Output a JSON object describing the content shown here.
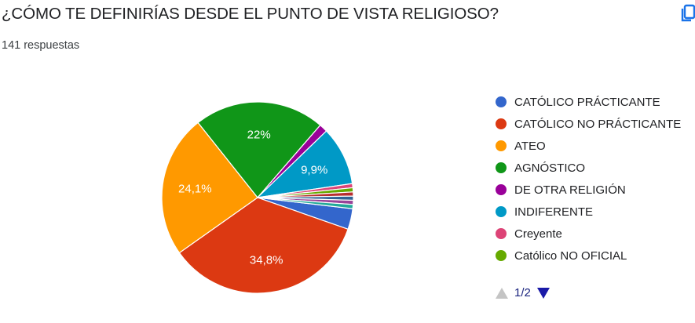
{
  "header": {
    "title": "¿CÓMO TE DEFINIRÍAS DESDE EL PUNTO DE VISTA RELIGIOSO?",
    "responses": "141 respuestas",
    "copy_icon": "copy-icon"
  },
  "chart_data": {
    "type": "pie",
    "title": "¿CÓMO TE DEFINIRÍAS DESDE EL PUNTO DE VISTA RELIGIOSO?",
    "total_responses": 141,
    "legend_position": "right",
    "slices": [
      {
        "label": "CATÓLICO PRÁCTICANTE",
        "value": 3.5,
        "display": "",
        "color": "#3366cc"
      },
      {
        "label": "CATÓLICO NO PRÁCTICANTE",
        "value": 34.8,
        "display": "34,8%",
        "color": "#dc3912"
      },
      {
        "label": "ATEO",
        "value": 24.1,
        "display": "24,1%",
        "color": "#ff9900"
      },
      {
        "label": "AGNÓSTICO",
        "value": 22,
        "display": "22%",
        "color": "#109618"
      },
      {
        "label": "DE OTRA RELIGIÓN",
        "value": 1.4,
        "display": "",
        "color": "#990099"
      },
      {
        "label": "INDIFERENTE",
        "value": 9.9,
        "display": "9,9%",
        "color": "#0099c6"
      },
      {
        "label": "Creyente",
        "value": 0.7,
        "display": "",
        "color": "#dd4477"
      },
      {
        "label": "Católico NO OFICIAL",
        "value": 0.7,
        "display": "",
        "color": "#66aa00"
      },
      {
        "label": "",
        "value": 0.7,
        "display": "",
        "color": "#b82e2e"
      },
      {
        "label": "",
        "value": 0.7,
        "display": "",
        "color": "#316395"
      },
      {
        "label": "",
        "value": 0.7,
        "display": "",
        "color": "#994499"
      },
      {
        "label": "",
        "value": 0.7,
        "display": "",
        "color": "#22aa99"
      }
    ],
    "legend_items": [
      {
        "label": "CATÓLICO PRÁCTICANTE",
        "color": "#3366cc"
      },
      {
        "label": "CATÓLICO NO PRÁCTICANTE",
        "color": "#dc3912"
      },
      {
        "label": "ATEO",
        "color": "#ff9900"
      },
      {
        "label": "AGNÓSTICO",
        "color": "#109618"
      },
      {
        "label": "DE OTRA RELIGIÓN",
        "color": "#990099"
      },
      {
        "label": "INDIFERENTE",
        "color": "#0099c6"
      },
      {
        "label": "Creyente",
        "color": "#dd4477"
      },
      {
        "label": "Católico NO OFICIAL",
        "color": "#66aa00"
      }
    ]
  },
  "pager": {
    "label": "1/2",
    "prev_icon": "triangle-up-icon",
    "next_icon": "triangle-down-icon"
  }
}
